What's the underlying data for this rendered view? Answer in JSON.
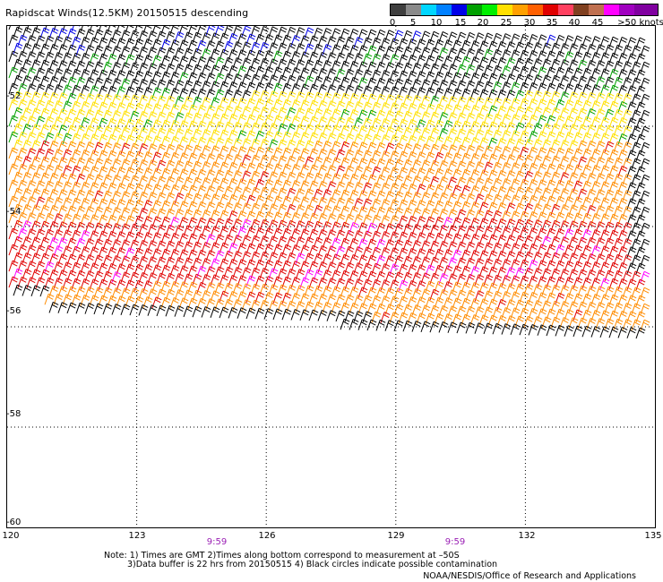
{
  "title": "Rapidscat Winds(12.5KM) 20150515 descending",
  "legend": {
    "colors": [
      "#3f3f3f",
      "#8a8a8a",
      "#00d6ff",
      "#0080ff",
      "#0000e8",
      "#00a000",
      "#00f000",
      "#ffe000",
      "#ffa000",
      "#ff6000",
      "#e00000",
      "#ff4060",
      "#804020",
      "#c07050",
      "#ff00ff",
      "#a000c0",
      "#8000a0"
    ],
    "labels": [
      "0",
      "5",
      "10",
      "15",
      "20",
      "25",
      "30",
      "35",
      "40",
      "45",
      ">50 knots"
    ]
  },
  "map": {
    "lat_labels": [
      "-52",
      "-54",
      "-56",
      "-58",
      "-60"
    ],
    "lon_labels": [
      "120",
      "123",
      "126",
      "129",
      "132",
      "135"
    ],
    "times": [
      "9:59",
      "9:59"
    ]
  },
  "note": {
    "line1": "Note: 1) Times are GMT 2)Times along bottom correspond to measurement at –50S",
    "line2": "3)Data buffer is 22 hrs from 20150515 4) Black circles indicate possible contamination"
  },
  "credit": "NOAA/NESDIS/Office of Research and Applications",
  "chart_data": {
    "type": "scatter",
    "title": "Rapidscat Winds(12.5KM) 20150515 descending",
    "xlabel": "",
    "ylabel": "",
    "xlim": [
      120,
      135
    ],
    "ylim": [
      -60,
      -50
    ],
    "x_ticks": [
      120,
      123,
      126,
      129,
      132,
      135
    ],
    "y_ticks": [
      -52,
      -54,
      -56,
      -58,
      -60
    ],
    "grid": true,
    "legend": "top-right colour bar (knots)",
    "swath": "descending pass covering about -50 to -56.5 latitude, 120 to 134.5 longitude",
    "bands": [
      {
        "lat_top": -50.0,
        "lat_bottom": -51.5,
        "color": "#000000"
      },
      {
        "lat_top": -51.5,
        "lat_bottom": -52.5,
        "color": "#ffe000"
      },
      {
        "lat_top": -52.5,
        "lat_bottom": -54.0,
        "color": "#ff8c00"
      },
      {
        "lat_top": -54.0,
        "lat_bottom": -55.3,
        "color": "#e00000"
      },
      {
        "lat_top": -55.3,
        "lat_bottom": -56.3,
        "color": "#ff8c00"
      }
    ]
  }
}
